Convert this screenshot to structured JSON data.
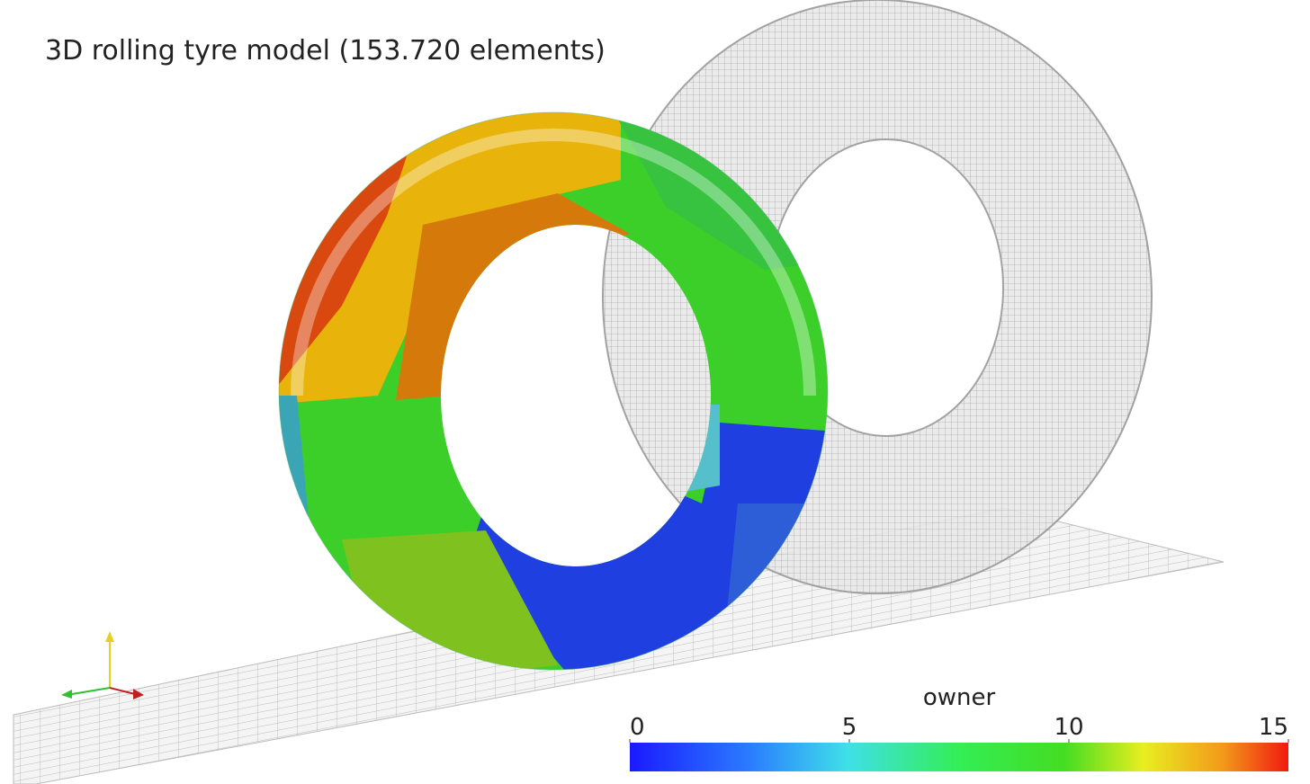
{
  "header": {
    "title": "3D rolling tyre model (153.720 elements)"
  },
  "scalar_bar": {
    "title": "owner",
    "range": [
      0,
      15
    ],
    "ticks": [
      0,
      5,
      10,
      15
    ]
  }
}
